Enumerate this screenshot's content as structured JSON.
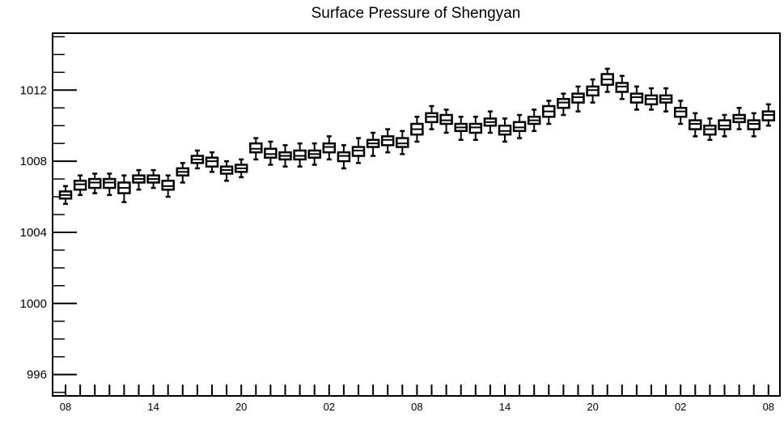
{
  "chart_data": {
    "type": "box",
    "title": "Surface Pressure of Shengyan",
    "xlabel": "",
    "ylabel": "",
    "ylim": [
      994.8,
      1015.2
    ],
    "y_ticks": [
      996,
      1000,
      1004,
      1008,
      1012
    ],
    "y_tick_labels": [
      "996",
      "1000",
      "1004",
      "1008",
      "1012"
    ],
    "x_tick_labels": [
      "08",
      "14",
      "20",
      "02",
      "08",
      "14",
      "20",
      "02",
      "08"
    ],
    "x_tick_every": 6,
    "grid": false,
    "median": [
      1006.1,
      1006.7,
      1006.8,
      1006.8,
      1006.5,
      1007.0,
      1007.0,
      1006.6,
      1007.4,
      1008.1,
      1008.0,
      1007.5,
      1007.6,
      1008.7,
      1008.4,
      1008.3,
      1008.3,
      1008.4,
      1008.8,
      1008.3,
      1008.6,
      1009.0,
      1009.2,
      1009.0,
      1009.8,
      1010.5,
      1010.3,
      1009.9,
      1009.9,
      1010.2,
      1009.7,
      1009.9,
      1010.3,
      1010.8,
      1011.3,
      1011.6,
      1012.0,
      1012.6,
      1012.2,
      1011.6,
      1011.5,
      1011.5,
      1010.8,
      1010.1,
      1009.8,
      1010.0,
      1010.4,
      1010.1,
      1010.6
    ],
    "q1": [
      1005.9,
      1006.4,
      1006.5,
      1006.5,
      1006.2,
      1006.8,
      1006.8,
      1006.4,
      1007.2,
      1007.9,
      1007.7,
      1007.3,
      1007.4,
      1008.5,
      1008.2,
      1008.1,
      1008.1,
      1008.2,
      1008.5,
      1008.0,
      1008.3,
      1008.8,
      1008.9,
      1008.8,
      1009.5,
      1010.2,
      1010.1,
      1009.7,
      1009.6,
      1010.0,
      1009.5,
      1009.7,
      1010.1,
      1010.5,
      1011.0,
      1011.3,
      1011.7,
      1012.3,
      1011.9,
      1011.3,
      1011.2,
      1011.3,
      1010.5,
      1009.8,
      1009.5,
      1009.8,
      1010.2,
      1009.8,
      1010.3
    ],
    "q3": [
      1006.3,
      1006.9,
      1007.0,
      1007.0,
      1006.8,
      1007.2,
      1007.2,
      1006.9,
      1007.6,
      1008.3,
      1008.2,
      1007.7,
      1007.8,
      1009.0,
      1008.7,
      1008.5,
      1008.6,
      1008.6,
      1009.0,
      1008.5,
      1008.8,
      1009.2,
      1009.4,
      1009.3,
      1010.1,
      1010.7,
      1010.6,
      1010.1,
      1010.1,
      1010.4,
      1010.0,
      1010.2,
      1010.5,
      1011.1,
      1011.5,
      1011.8,
      1012.2,
      1012.9,
      1012.4,
      1011.8,
      1011.7,
      1011.7,
      1011.0,
      1010.3,
      1010.0,
      1010.3,
      1010.6,
      1010.3,
      1010.8
    ],
    "whisker_low": [
      1005.6,
      1006.1,
      1006.2,
      1006.1,
      1005.7,
      1006.4,
      1006.5,
      1006.0,
      1006.8,
      1007.6,
      1007.4,
      1006.9,
      1007.1,
      1008.1,
      1007.8,
      1007.7,
      1007.7,
      1007.8,
      1008.1,
      1007.6,
      1007.9,
      1008.3,
      1008.5,
      1008.4,
      1009.1,
      1009.8,
      1009.6,
      1009.2,
      1009.2,
      1009.6,
      1009.1,
      1009.3,
      1009.7,
      1010.1,
      1010.6,
      1010.8,
      1011.3,
      1011.9,
      1011.5,
      1010.9,
      1010.9,
      1010.8,
      1010.1,
      1009.4,
      1009.2,
      1009.4,
      1009.8,
      1009.4,
      1010.0
    ],
    "whisker_high": [
      1006.6,
      1007.2,
      1007.3,
      1007.3,
      1007.2,
      1007.5,
      1007.5,
      1007.2,
      1007.9,
      1008.6,
      1008.5,
      1008.0,
      1008.1,
      1009.3,
      1009.1,
      1008.9,
      1009.0,
      1009.0,
      1009.4,
      1008.9,
      1009.3,
      1009.6,
      1009.8,
      1009.7,
      1010.5,
      1011.1,
      1010.9,
      1010.5,
      1010.5,
      1010.8,
      1010.4,
      1010.6,
      1010.9,
      1011.4,
      1011.8,
      1012.2,
      1012.6,
      1013.2,
      1012.8,
      1012.2,
      1012.1,
      1012.1,
      1011.4,
      1010.7,
      1010.4,
      1010.6,
      1011.0,
      1010.7,
      1011.2
    ]
  }
}
